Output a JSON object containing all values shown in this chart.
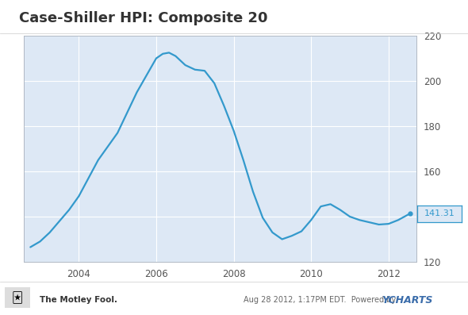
{
  "title": "Case-Shiller HPI: Composite 20",
  "title_fontsize": 13,
  "title_fontweight": "bold",
  "background_color": "#ffffff",
  "plot_bg_color": "#dde8f5",
  "line_color": "#3399cc",
  "line_width": 1.6,
  "ylim": [
    120,
    220
  ],
  "yticks": [
    120,
    140,
    160,
    180,
    200,
    220
  ],
  "ylabel_color": "#555555",
  "grid_color": "#ffffff",
  "last_value": "141.31",
  "last_value_color": "#3399cc",
  "footer_date_text": "Aug 28 2012, 1:17PM EDT.  Powered by ",
  "ycharts_text": "YCHARTS",
  "motleyfool_text": "The Motley Fool.",
  "x_values": [
    2002.75,
    2003.0,
    2003.25,
    2003.5,
    2003.75,
    2004.0,
    2004.25,
    2004.5,
    2004.75,
    2005.0,
    2005.25,
    2005.5,
    2005.75,
    2006.0,
    2006.17,
    2006.33,
    2006.5,
    2006.75,
    2007.0,
    2007.25,
    2007.5,
    2007.75,
    2008.0,
    2008.25,
    2008.5,
    2008.75,
    2009.0,
    2009.25,
    2009.5,
    2009.75,
    2010.0,
    2010.25,
    2010.5,
    2010.75,
    2011.0,
    2011.25,
    2011.5,
    2011.75,
    2012.0,
    2012.25,
    2012.55
  ],
  "y_values": [
    126.5,
    129.0,
    133.0,
    138.0,
    143.0,
    149.0,
    157.0,
    165.0,
    171.0,
    177.0,
    186.0,
    195.0,
    202.5,
    210.0,
    212.0,
    212.5,
    211.0,
    207.0,
    205.0,
    204.5,
    199.0,
    189.0,
    178.0,
    165.0,
    151.0,
    139.5,
    133.0,
    130.0,
    131.5,
    133.5,
    138.5,
    144.5,
    145.5,
    143.0,
    140.0,
    138.5,
    137.5,
    136.5,
    136.8,
    138.5,
    141.31
  ],
  "xtick_years": [
    2004,
    2006,
    2008,
    2010,
    2012
  ],
  "xmin": 2002.58,
  "xmax": 2012.72
}
